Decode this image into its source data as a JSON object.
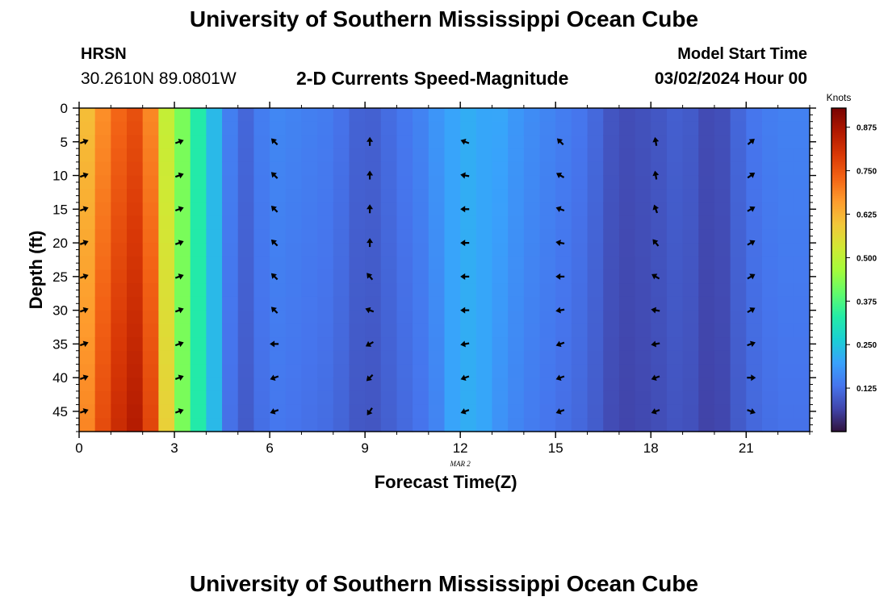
{
  "header": {
    "title": "University of Southern Mississippi Ocean Cube",
    "station": "HRSN",
    "coords": "30.2610N  89.0801W",
    "subtitle": "2-D Currents Speed-Magnitude",
    "start_label": "Model Start Time",
    "start_value": "03/02/2024 Hour 00"
  },
  "footer": {
    "title": "University of Southern Mississippi Ocean Cube"
  },
  "chart_data": {
    "type": "heatmap",
    "title": "2-D Currents Speed-Magnitude",
    "xlabel": "Forecast Time(Z)",
    "ylabel": "Depth (ft)",
    "x_tick_labels": [
      "0",
      "3",
      "6",
      "9",
      "12",
      "15",
      "18",
      "21"
    ],
    "x_ticks": [
      0,
      3,
      6,
      9,
      12,
      15,
      18,
      21
    ],
    "xlim": [
      0,
      23
    ],
    "date_label": "MAR 2",
    "y_tick_labels": [
      "0",
      "5",
      "10",
      "15",
      "20",
      "25",
      "30",
      "35",
      "40",
      "45"
    ],
    "y_ticks": [
      0,
      5,
      10,
      15,
      20,
      25,
      30,
      35,
      40,
      45
    ],
    "ylim": [
      0,
      48
    ],
    "y_inverted": true,
    "colorbar": {
      "label": "Knots",
      "tick_labels": [
        "0.875",
        "0.750",
        "0.625",
        "0.500",
        "0.375",
        "0.250",
        "0.125"
      ],
      "ticks": [
        0.875,
        0.75,
        0.625,
        0.5,
        0.375,
        0.25,
        0.125
      ],
      "range": [
        0,
        0.93
      ],
      "colormap": [
        "#30123b",
        "#4145ab",
        "#4675ed",
        "#39a2fc",
        "#1bcfd4",
        "#24eca6",
        "#61fc6c",
        "#a4fc3b",
        "#d1e834",
        "#f3c63a",
        "#fe9b2d",
        "#f36315",
        "#d93806",
        "#b11901",
        "#7a0402"
      ]
    },
    "speed_hours": [
      0,
      1,
      2,
      3,
      4,
      5,
      6,
      7,
      8,
      9,
      10,
      11,
      12,
      13,
      14,
      15,
      16,
      17,
      18,
      19,
      20,
      21,
      22,
      23
    ],
    "speed_profile_knots": [
      0.64,
      0.79,
      0.86,
      0.47,
      0.28,
      0.09,
      0.15,
      0.14,
      0.13,
      0.09,
      0.12,
      0.15,
      0.22,
      0.2,
      0.16,
      0.14,
      0.12,
      0.07,
      0.08,
      0.1,
      0.06,
      0.12,
      0.14,
      0.14
    ],
    "arrow_hours": [
      0,
      3,
      6,
      9,
      12,
      15,
      18,
      21
    ],
    "arrow_depths": [
      5,
      10,
      15,
      20,
      25,
      30,
      35,
      40,
      45
    ],
    "arrow_directions_deg": [
      [
        70,
        70,
        70,
        70,
        70,
        70,
        70,
        70,
        70
      ],
      [
        70,
        70,
        70,
        70,
        70,
        70,
        70,
        70,
        70
      ],
      [
        315,
        315,
        315,
        315,
        315,
        315,
        270,
        250,
        250
      ],
      [
        0,
        0,
        0,
        0,
        320,
        290,
        240,
        225,
        215
      ],
      [
        290,
        280,
        270,
        270,
        270,
        270,
        260,
        250,
        250
      ],
      [
        315,
        300,
        290,
        280,
        270,
        260,
        250,
        250,
        250
      ],
      [
        350,
        350,
        340,
        320,
        300,
        280,
        260,
        250,
        250
      ],
      [
        50,
        55,
        60,
        60,
        60,
        60,
        70,
        90,
        110
      ]
    ]
  }
}
